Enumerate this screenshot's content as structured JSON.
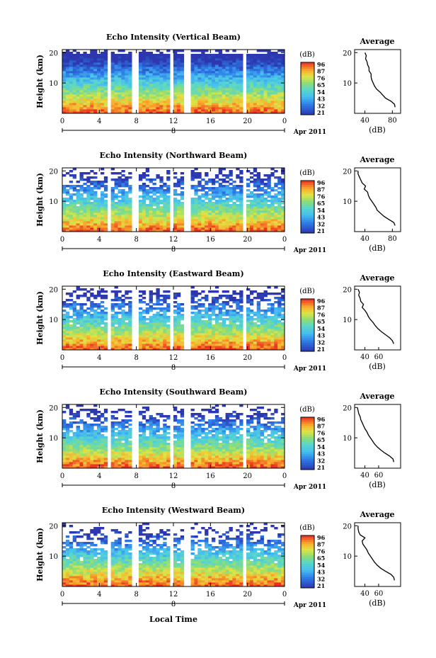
{
  "figure": {
    "x_axis_label": "Local Time",
    "date_label": "Apr 2011"
  },
  "chart_data": [
    {
      "type": "heatmap",
      "title": "Echo Intensity (Vertical Beam)",
      "ylabel": "Height (km)",
      "xlabel": "Local Time",
      "x_ticks": [
        "0",
        "4",
        "8",
        "12",
        "16",
        "20",
        "0"
      ],
      "y_ticks": [
        "10",
        "20"
      ],
      "day_label": "8",
      "date_label": "Apr 2011",
      "colorbar": {
        "unit": "(dB)",
        "ticks": [
          "96",
          "87",
          "76",
          "65",
          "54",
          "43",
          "32",
          "21"
        ]
      },
      "profile": {
        "title": "Average",
        "xlabel": "(dB)",
        "x_ticks": [
          "40",
          "80"
        ],
        "y_ticks": [
          "10",
          "20"
        ],
        "heights": [
          2,
          3,
          4,
          5,
          6,
          7,
          8,
          9,
          10,
          11,
          12,
          13,
          14,
          15,
          16,
          17,
          18,
          19,
          20
        ],
        "values": [
          84,
          83,
          78,
          70,
          66,
          62,
          57,
          54,
          52,
          50,
          49,
          49,
          46,
          46,
          44,
          43,
          41,
          42,
          40
        ]
      }
    },
    {
      "type": "heatmap",
      "title": "Echo Intensity (Northward Beam)",
      "ylabel": "Height (km)",
      "xlabel": "Local Time",
      "x_ticks": [
        "0",
        "4",
        "8",
        "12",
        "16",
        "20",
        "0"
      ],
      "y_ticks": [
        "10",
        "20"
      ],
      "day_label": "8",
      "date_label": "Apr 2011",
      "colorbar": {
        "unit": "(dB)",
        "ticks": [
          "96",
          "87",
          "76",
          "65",
          "54",
          "43",
          "32",
          "21"
        ]
      },
      "profile": {
        "title": "Average",
        "xlabel": "(dB)",
        "x_ticks": [
          "40",
          "80"
        ],
        "y_ticks": [
          "10",
          "20"
        ],
        "heights": [
          2,
          3,
          4,
          5,
          6,
          7,
          8,
          9,
          10,
          11,
          12,
          13,
          14,
          15,
          16,
          17,
          18,
          19,
          20
        ],
        "values": [
          84,
          82,
          75,
          68,
          63,
          58,
          56,
          53,
          50,
          47,
          45,
          44,
          39,
          41,
          36,
          34,
          32,
          30,
          30
        ]
      }
    },
    {
      "type": "heatmap",
      "title": "Echo Intensity (Eastward Beam)",
      "ylabel": "Height (km)",
      "xlabel": "Local Time",
      "x_ticks": [
        "0",
        "4",
        "8",
        "12",
        "16",
        "20",
        "0"
      ],
      "y_ticks": [
        "10",
        "20"
      ],
      "day_label": "8",
      "date_label": "Apr 2011",
      "colorbar": {
        "unit": "(dB)",
        "ticks": [
          "96",
          "87",
          "76",
          "65",
          "54",
          "43",
          "32",
          "21"
        ]
      },
      "profile": {
        "title": "Average",
        "xlabel": "(dB)",
        "x_ticks": [
          "40",
          "60"
        ],
        "y_ticks": [
          "10",
          "20"
        ],
        "heights": [
          2,
          3,
          4,
          5,
          6,
          7,
          8,
          9,
          10,
          11,
          12,
          13,
          14,
          15,
          16,
          17,
          18,
          19,
          20
        ],
        "values": [
          82,
          80,
          76,
          70,
          64,
          59,
          55,
          52,
          48,
          45,
          43,
          40,
          36,
          38,
          34,
          33,
          31,
          32,
          30
        ]
      }
    },
    {
      "type": "heatmap",
      "title": "Echo Intensity (Southward Beam)",
      "ylabel": "Height (km)",
      "xlabel": "Local Time",
      "x_ticks": [
        "0",
        "4",
        "8",
        "12",
        "16",
        "20",
        "0"
      ],
      "y_ticks": [
        "10",
        "20"
      ],
      "day_label": "8",
      "date_label": "Apr 2011",
      "colorbar": {
        "unit": "(dB)",
        "ticks": [
          "96",
          "87",
          "76",
          "65",
          "54",
          "43",
          "32",
          "21"
        ]
      },
      "profile": {
        "title": "Average",
        "xlabel": "(dB)",
        "x_ticks": [
          "40",
          "60"
        ],
        "y_ticks": [
          "10",
          "20"
        ],
        "heights": [
          2,
          3,
          4,
          5,
          6,
          7,
          8,
          9,
          10,
          11,
          12,
          13,
          14,
          15,
          16,
          17,
          18,
          19,
          20
        ],
        "values": [
          82,
          81,
          76,
          69,
          63,
          58,
          54,
          51,
          48,
          45,
          43,
          40,
          38,
          36,
          34,
          33,
          31,
          30,
          29
        ]
      }
    },
    {
      "type": "heatmap",
      "title": "Echo Intensity (Westward Beam)",
      "ylabel": "Height (km)",
      "xlabel": "Local Time",
      "x_ticks": [
        "0",
        "4",
        "8",
        "12",
        "16",
        "20",
        "0"
      ],
      "y_ticks": [
        "10",
        "20"
      ],
      "day_label": "8",
      "date_label": "Apr 2011",
      "colorbar": {
        "unit": "(dB)",
        "ticks": [
          "96",
          "87",
          "76",
          "65",
          "54",
          "43",
          "32",
          "21"
        ]
      },
      "profile": {
        "title": "Average",
        "xlabel": "(dB)",
        "x_ticks": [
          "40",
          "60"
        ],
        "y_ticks": [
          "10",
          "20"
        ],
        "heights": [
          2,
          3,
          4,
          5,
          6,
          7,
          8,
          9,
          10,
          11,
          12,
          13,
          14,
          15,
          16,
          17,
          18,
          19,
          20
        ],
        "values": [
          83,
          82,
          78,
          70,
          63,
          58,
          54,
          51,
          48,
          45,
          43,
          40,
          37,
          36,
          40,
          33,
          31,
          30,
          30
        ]
      }
    }
  ]
}
